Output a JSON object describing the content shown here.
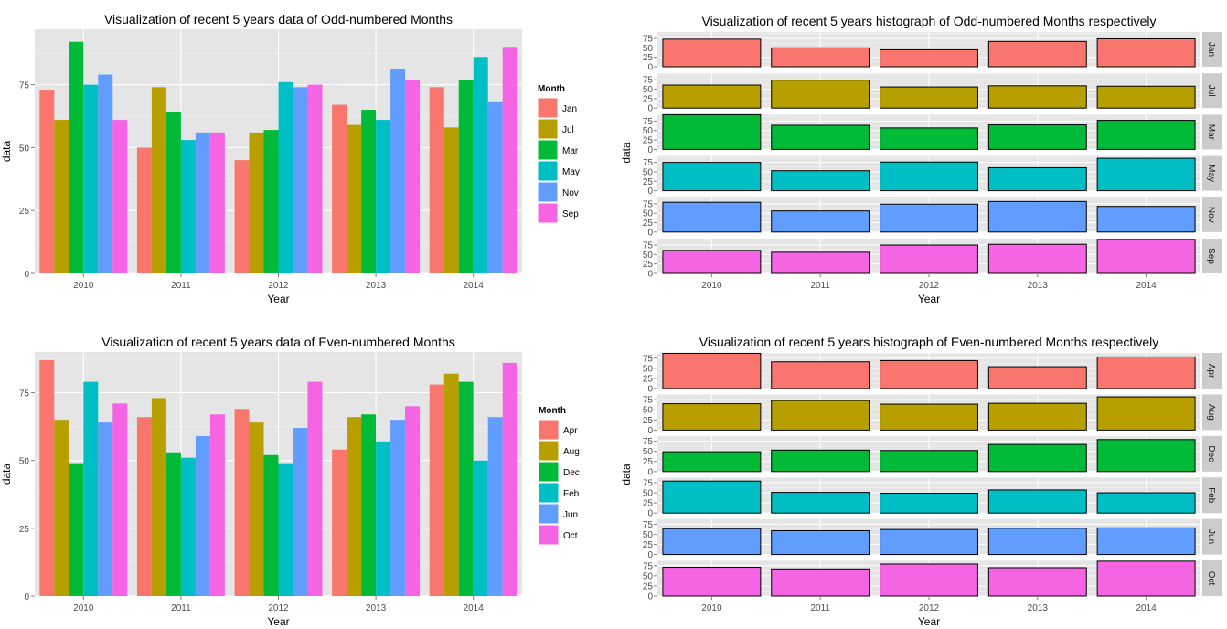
{
  "colors": {
    "panel_bg": "#E5E5E5",
    "grid_major": "#FFFFFF",
    "grid_minor": "#F2F2F2",
    "strip_bg": "#CCCCCC",
    "axis_text": "#4D4D4D",
    "series": [
      "#F8766D",
      "#B79F00",
      "#00BA38",
      "#00BFC4",
      "#619CFF",
      "#F564E3"
    ]
  },
  "chart_data": [
    {
      "type": "bar",
      "title": "Visualization of recent 5 years data of Odd-numbered Months",
      "xlabel": "Year",
      "ylabel": "data",
      "categories": [
        "2010",
        "2011",
        "2012",
        "2013",
        "2014"
      ],
      "ylim": [
        0,
        97
      ],
      "yticks": [
        0,
        25,
        50,
        75
      ],
      "legend_title": "Month",
      "legend_position": "right",
      "series": [
        {
          "name": "Jan",
          "values": [
            73,
            50,
            45,
            67,
            74
          ]
        },
        {
          "name": "Jul",
          "values": [
            61,
            74,
            56,
            59,
            58
          ]
        },
        {
          "name": "Mar",
          "values": [
            92,
            64,
            57,
            65,
            77
          ]
        },
        {
          "name": "May",
          "values": [
            75,
            53,
            76,
            61,
            86
          ]
        },
        {
          "name": "Nov",
          "values": [
            79,
            56,
            74,
            81,
            68
          ]
        },
        {
          "name": "Sep",
          "values": [
            61,
            56,
            75,
            77,
            90
          ]
        }
      ]
    },
    {
      "type": "bar",
      "title": "Visualization of recent 5 years histograph of Odd-numbered Months respectively",
      "xlabel": "Year",
      "ylabel": "data",
      "categories": [
        "2010",
        "2011",
        "2012",
        "2013",
        "2014"
      ],
      "facet_ylim": [
        0,
        92
      ],
      "facet_yticks": [
        0,
        25,
        50,
        75
      ],
      "facets": [
        {
          "name": "Jan",
          "values": [
            73,
            50,
            45,
            67,
            74
          ]
        },
        {
          "name": "Jul",
          "values": [
            61,
            74,
            56,
            59,
            58
          ]
        },
        {
          "name": "Mar",
          "values": [
            92,
            64,
            57,
            65,
            77
          ]
        },
        {
          "name": "May",
          "values": [
            75,
            53,
            76,
            61,
            86
          ]
        },
        {
          "name": "Nov",
          "values": [
            79,
            56,
            74,
            81,
            68
          ]
        },
        {
          "name": "Sep",
          "values": [
            61,
            56,
            75,
            77,
            90
          ]
        }
      ]
    },
    {
      "type": "bar",
      "title": "Visualization of recent 5 years data of Even-numbered Months",
      "xlabel": "Year",
      "ylabel": "data",
      "categories": [
        "2010",
        "2011",
        "2012",
        "2013",
        "2014"
      ],
      "ylim": [
        0,
        90
      ],
      "yticks": [
        0,
        25,
        50,
        75
      ],
      "legend_title": "Month",
      "legend_position": "right",
      "series": [
        {
          "name": "Apr",
          "values": [
            87,
            66,
            69,
            54,
            78
          ]
        },
        {
          "name": "Aug",
          "values": [
            65,
            73,
            64,
            66,
            82
          ]
        },
        {
          "name": "Dec",
          "values": [
            49,
            53,
            52,
            67,
            79
          ]
        },
        {
          "name": "Feb",
          "values": [
            79,
            51,
            49,
            57,
            50
          ]
        },
        {
          "name": "Jun",
          "values": [
            64,
            59,
            62,
            65,
            66
          ]
        },
        {
          "name": "Oct",
          "values": [
            71,
            67,
            79,
            70,
            86
          ]
        }
      ]
    },
    {
      "type": "bar",
      "title": "Visualization of recent 5 years histograph of Even-numbered Months respectively",
      "xlabel": "Year",
      "ylabel": "data",
      "categories": [
        "2010",
        "2011",
        "2012",
        "2013",
        "2014"
      ],
      "facet_ylim": [
        0,
        88
      ],
      "facet_yticks": [
        0,
        25,
        50,
        75
      ],
      "facets": [
        {
          "name": "Apr",
          "values": [
            87,
            66,
            69,
            54,
            78
          ]
        },
        {
          "name": "Aug",
          "values": [
            65,
            73,
            64,
            66,
            82
          ]
        },
        {
          "name": "Dec",
          "values": [
            49,
            53,
            52,
            67,
            79
          ]
        },
        {
          "name": "Feb",
          "values": [
            79,
            51,
            49,
            57,
            50
          ]
        },
        {
          "name": "Jun",
          "values": [
            64,
            59,
            62,
            65,
            66
          ]
        },
        {
          "name": "Oct",
          "values": [
            71,
            67,
            79,
            70,
            86
          ]
        }
      ]
    }
  ]
}
